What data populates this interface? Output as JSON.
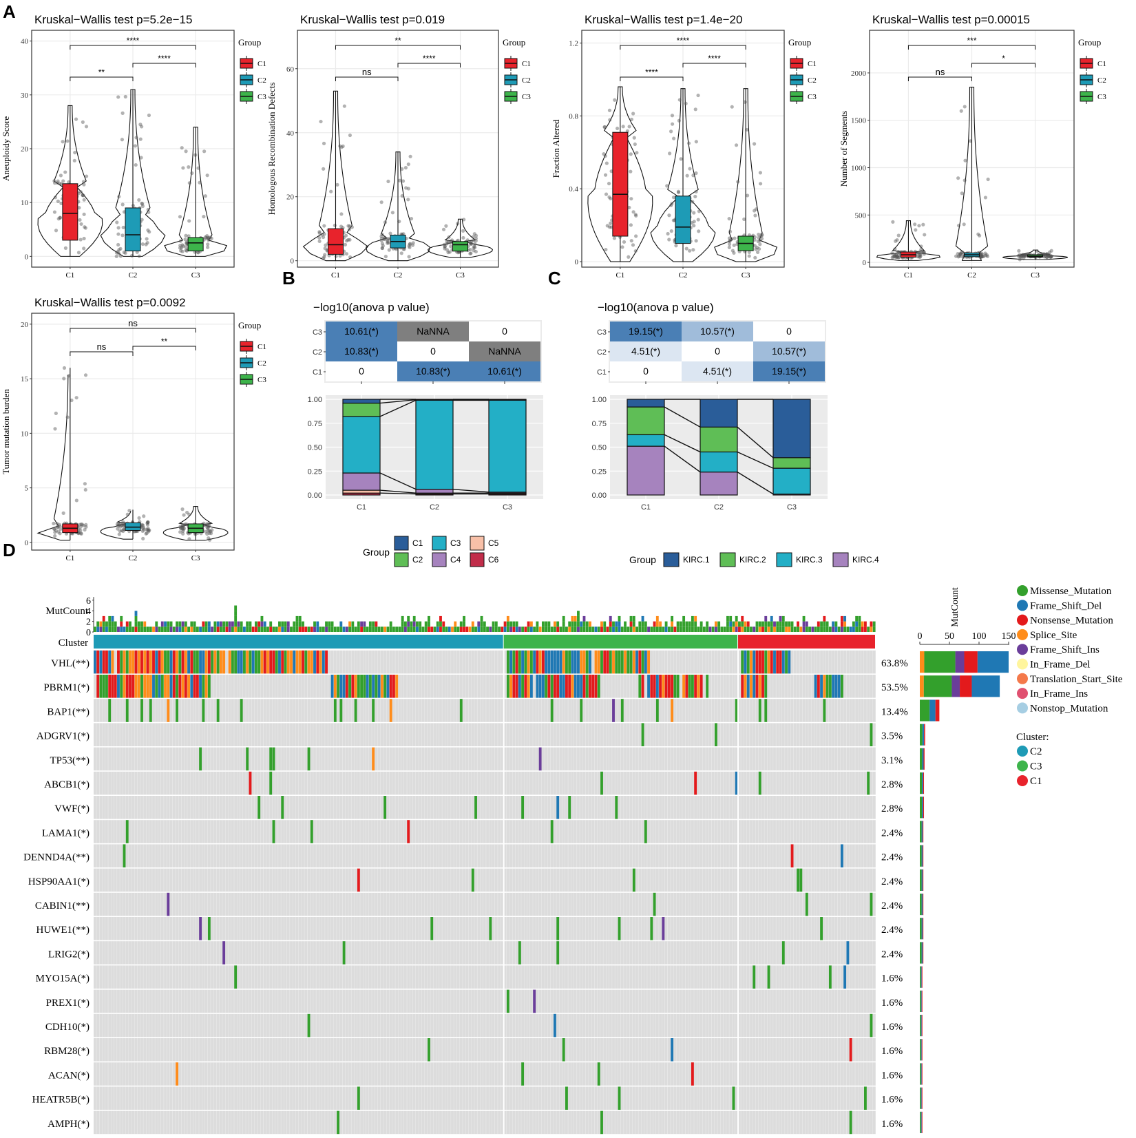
{
  "panel_labels": [
    "A",
    "B",
    "C",
    "D"
  ],
  "colors": {
    "C1": "#E8232C",
    "C2": "#1E9BB6",
    "C3": "#3DB44B",
    "grid": "#EBEBEB",
    "axis": "#4D4D4D",
    "point": "#555555"
  },
  "chart_data": [
    {
      "type": "box",
      "title": "Kruskal−Wallis test p=5.2e−15",
      "ylabel": "Aneuploidy Score",
      "categories": [
        "C1",
        "C2",
        "C3"
      ],
      "ylim": [
        -2,
        42
      ],
      "yticks": [
        0,
        10,
        20,
        30,
        40
      ],
      "legend_title": "Group",
      "legend": [
        "C1",
        "C2",
        "C3"
      ],
      "boxes": [
        {
          "q1": 3,
          "median": 8,
          "q3": 13.5,
          "lo": 0,
          "hi": 28
        },
        {
          "q1": 1,
          "median": 4,
          "q3": 9,
          "lo": 0,
          "hi": 31
        },
        {
          "q1": 1,
          "median": 2.5,
          "q3": 3.5,
          "lo": 0,
          "hi": 24
        }
      ],
      "comparisons": [
        {
          "a": "C1",
          "b": "C2",
          "label": "**"
        },
        {
          "a": "C2",
          "b": "C3",
          "label": "****"
        },
        {
          "a": "C1",
          "b": "C3",
          "label": "****"
        }
      ]
    },
    {
      "type": "box",
      "title": "Kruskal−Wallis test p=0.019",
      "ylabel": "Homologous Recombination Defects",
      "categories": [
        "C1",
        "C2",
        "C3"
      ],
      "ylim": [
        -2,
        72
      ],
      "yticks": [
        0,
        20,
        40,
        60
      ],
      "legend_title": "Group",
      "legend": [
        "C1",
        "C2",
        "C3"
      ],
      "boxes": [
        {
          "q1": 2,
          "median": 5,
          "q3": 10,
          "lo": 0,
          "hi": 53
        },
        {
          "q1": 4,
          "median": 6,
          "q3": 8,
          "lo": 0,
          "hi": 34
        },
        {
          "q1": 3,
          "median": 5,
          "q3": 6,
          "lo": 1,
          "hi": 13
        }
      ],
      "comparisons": [
        {
          "a": "C1",
          "b": "C2",
          "label": "ns"
        },
        {
          "a": "C2",
          "b": "C3",
          "label": "****"
        },
        {
          "a": "C1",
          "b": "C3",
          "label": "**"
        }
      ]
    },
    {
      "type": "box",
      "title": "Kruskal−Wallis test p=1.4e−20",
      "ylabel": "Fraction Altered",
      "categories": [
        "C1",
        "C2",
        "C3"
      ],
      "ylim": [
        -0.03,
        1.27
      ],
      "yticks": [
        0.0,
        0.4,
        0.8,
        1.2
      ],
      "legend_title": "Group",
      "legend": [
        "C1",
        "C2",
        "C3"
      ],
      "boxes": [
        {
          "q1": 0.14,
          "median": 0.37,
          "q3": 0.71,
          "lo": 0,
          "hi": 0.96
        },
        {
          "q1": 0.1,
          "median": 0.19,
          "q3": 0.36,
          "lo": 0,
          "hi": 0.95
        },
        {
          "q1": 0.06,
          "median": 0.1,
          "q3": 0.14,
          "lo": 0,
          "hi": 0.95
        }
      ],
      "comparisons": [
        {
          "a": "C1",
          "b": "C2",
          "label": "****"
        },
        {
          "a": "C2",
          "b": "C3",
          "label": "****"
        },
        {
          "a": "C1",
          "b": "C3",
          "label": "****"
        }
      ]
    },
    {
      "type": "box",
      "title": "Kruskal−Wallis test p=0.00015",
      "ylabel": "Number of Segments",
      "categories": [
        "C1",
        "C2",
        "C3"
      ],
      "ylim": [
        -50,
        2450
      ],
      "yticks": [
        0,
        500,
        1000,
        1500,
        2000
      ],
      "legend_title": "Group",
      "legend": [
        "C1",
        "C2",
        "C3"
      ],
      "boxes": [
        {
          "q1": 55,
          "median": 80,
          "q3": 110,
          "lo": 20,
          "hi": 440
        },
        {
          "q1": 60,
          "median": 80,
          "q3": 100,
          "lo": 20,
          "hi": 1850
        },
        {
          "q1": 55,
          "median": 65,
          "q3": 80,
          "lo": 30,
          "hi": 130
        }
      ],
      "comparisons": [
        {
          "a": "C1",
          "b": "C2",
          "label": "ns"
        },
        {
          "a": "C2",
          "b": "C3",
          "label": "*"
        },
        {
          "a": "C1",
          "b": "C3",
          "label": "***"
        }
      ]
    },
    {
      "type": "box",
      "title": "Kruskal−Wallis test p=0.0092",
      "ylabel": "Tumor mutation burden",
      "categories": [
        "C1",
        "C2",
        "C3"
      ],
      "ylim": [
        -0.7,
        21
      ],
      "yticks": [
        0,
        5,
        10,
        15,
        20
      ],
      "legend_title": "Group",
      "legend": [
        "C1",
        "C2",
        "C3"
      ],
      "boxes": [
        {
          "q1": 0.9,
          "median": 1.3,
          "q3": 1.7,
          "lo": 0.2,
          "hi": 16
        },
        {
          "q1": 1.1,
          "median": 1.4,
          "q3": 1.8,
          "lo": 0.3,
          "hi": 3
        },
        {
          "q1": 0.9,
          "median": 1.3,
          "q3": 1.7,
          "lo": 0.2,
          "hi": 3.3
        }
      ],
      "comparisons": [
        {
          "a": "C1",
          "b": "C2",
          "label": "ns"
        },
        {
          "a": "C2",
          "b": "C3",
          "label": "**"
        },
        {
          "a": "C1",
          "b": "C3",
          "label": "ns"
        }
      ]
    },
    {
      "type": "heatmap",
      "title": "−log10(anova p value)",
      "rows": [
        "C3",
        "C2",
        "C1"
      ],
      "cols": [
        "C1",
        "C2",
        "C3"
      ],
      "cells": [
        [
          "10.61(*)",
          "NaNNA",
          "0"
        ],
        [
          "10.83(*)",
          "0",
          "NaNNA"
        ],
        [
          "0",
          "10.83(*)",
          "10.61(*)"
        ]
      ],
      "cell_colors": [
        [
          "#4A7FB5",
          "#7F7F7F",
          "#FFFFFF"
        ],
        [
          "#4A7FB5",
          "#FFFFFF",
          "#7F7F7F"
        ],
        [
          "#FFFFFF",
          "#4A7FB5",
          "#4A7FB5"
        ]
      ]
    },
    {
      "type": "stacked-bar",
      "categories": [
        "C1",
        "C2",
        "C3"
      ],
      "ylim": [
        0,
        1
      ],
      "yticks": [
        "0.00",
        "0.25",
        "0.50",
        "0.75",
        "1.00"
      ],
      "legend_title": "Group",
      "series": [
        {
          "name": "C6",
          "color": "#C12D4A",
          "values": [
            0.02,
            0.01,
            0.01
          ]
        },
        {
          "name": "C5",
          "color": "#F8C0A8",
          "values": [
            0.03,
            0.01,
            0.01
          ]
        },
        {
          "name": "C4",
          "color": "#A683BE",
          "values": [
            0.18,
            0.04,
            0.01
          ]
        },
        {
          "name": "C3",
          "color": "#23AFC6",
          "values": [
            0.59,
            0.93,
            0.96
          ]
        },
        {
          "name": "C2",
          "color": "#5FBE56",
          "values": [
            0.14,
            0.005,
            0.005
          ]
        },
        {
          "name": "C1",
          "color": "#2A5D99",
          "values": [
            0.04,
            0.005,
            0.005
          ]
        }
      ]
    },
    {
      "type": "heatmap",
      "title": "−log10(anova p value)",
      "rows": [
        "C3",
        "C2",
        "C1"
      ],
      "cols": [
        "C1",
        "C2",
        "C3"
      ],
      "cells": [
        [
          "19.15(*)",
          "10.57(*)",
          "0"
        ],
        [
          "4.51(*)",
          "0",
          "10.57(*)"
        ],
        [
          "0",
          "4.51(*)",
          "19.15(*)"
        ]
      ],
      "cell_colors": [
        [
          "#4A7FB5",
          "#A0BCDA",
          "#FFFFFF"
        ],
        [
          "#DCE6F2",
          "#FFFFFF",
          "#A0BCDA"
        ],
        [
          "#FFFFFF",
          "#DCE6F2",
          "#4A7FB5"
        ]
      ]
    },
    {
      "type": "stacked-bar",
      "categories": [
        "C1",
        "C2",
        "C3"
      ],
      "ylim": [
        0,
        1
      ],
      "yticks": [
        "0.00",
        "0.25",
        "0.50",
        "0.75",
        "1.00"
      ],
      "legend_title": "Group",
      "series": [
        {
          "name": "KIRC.4",
          "color": "#A683BE",
          "values": [
            0.51,
            0.24,
            0.01
          ]
        },
        {
          "name": "KIRC.3",
          "color": "#23AFC6",
          "values": [
            0.12,
            0.21,
            0.27
          ]
        },
        {
          "name": "KIRC.2",
          "color": "#5FBE56",
          "values": [
            0.29,
            0.26,
            0.11
          ]
        },
        {
          "name": "KIRC.1",
          "color": "#2A5D99",
          "values": [
            0.08,
            0.29,
            0.61
          ]
        }
      ]
    },
    {
      "type": "oncoplot",
      "top_label": "MutCount",
      "top_ticks": [
        "0",
        "2",
        "4",
        "6"
      ],
      "cluster_label": "Cluster",
      "clusters": [
        {
          "name": "C2",
          "n": 140,
          "color": "#1E9BB6"
        },
        {
          "name": "C3",
          "n": 80,
          "color": "#3DB44B"
        },
        {
          "name": "C1",
          "n": 47,
          "color": "#E8232C"
        }
      ],
      "genes": [
        {
          "name": "VHL(**)",
          "pct": "63.8%",
          "count": 150
        },
        {
          "name": "PBRM1(*)",
          "pct": "53.5%",
          "count": 135
        },
        {
          "name": "BAP1(**)",
          "pct": "13.4%",
          "count": 33
        },
        {
          "name": "ADGRV1(*)",
          "pct": "3.5%",
          "count": 9
        },
        {
          "name": "TP53(**)",
          "pct": "3.1%",
          "count": 8
        },
        {
          "name": "ABCB1(*)",
          "pct": "2.8%",
          "count": 7
        },
        {
          "name": "VWF(*)",
          "pct": "2.8%",
          "count": 7
        },
        {
          "name": "LAMA1(*)",
          "pct": "2.4%",
          "count": 6
        },
        {
          "name": "DENND4A(**)",
          "pct": "2.4%",
          "count": 6
        },
        {
          "name": "HSP90AA1(*)",
          "pct": "2.4%",
          "count": 6
        },
        {
          "name": "CABIN1(**)",
          "pct": "2.4%",
          "count": 6
        },
        {
          "name": "HUWE1(**)",
          "pct": "2.4%",
          "count": 6
        },
        {
          "name": "LRIG2(*)",
          "pct": "2.4%",
          "count": 6
        },
        {
          "name": "MYO15A(*)",
          "pct": "1.6%",
          "count": 4
        },
        {
          "name": "PREX1(*)",
          "pct": "1.6%",
          "count": 4
        },
        {
          "name": "CDH10(*)",
          "pct": "1.6%",
          "count": 4
        },
        {
          "name": "RBM28(*)",
          "pct": "1.6%",
          "count": 4
        },
        {
          "name": "ACAN(*)",
          "pct": "1.6%",
          "count": 4
        },
        {
          "name": "HEATR5B(*)",
          "pct": "1.6%",
          "count": 4
        },
        {
          "name": "AMPH(*)",
          "pct": "1.6%",
          "count": 4
        }
      ],
      "side_label": "MutCount",
      "side_ticks": [
        "0",
        "50",
        "100",
        "150"
      ],
      "variant_legend": [
        {
          "name": "Missense_Mutation",
          "color": "#33A02C"
        },
        {
          "name": "Frame_Shift_Del",
          "color": "#1F78B4"
        },
        {
          "name": "Nonsense_Mutation",
          "color": "#E31A1C"
        },
        {
          "name": "Splice_Site",
          "color": "#FF8C1A"
        },
        {
          "name": "Frame_Shift_Ins",
          "color": "#6A3D9A"
        },
        {
          "name": "In_Frame_Del",
          "color": "#FFF59D"
        },
        {
          "name": "Translation_Start_Site",
          "color": "#F4794B"
        },
        {
          "name": "In_Frame_Ins",
          "color": "#E05070"
        },
        {
          "name": "Nonstop_Mutation",
          "color": "#A6CEE3"
        }
      ],
      "cluster_legend_title": "Cluster:",
      "cluster_legend": [
        {
          "name": "C2",
          "color": "#1E9BB6"
        },
        {
          "name": "C3",
          "color": "#3DB44B"
        },
        {
          "name": "C1",
          "color": "#E8232C"
        }
      ]
    }
  ]
}
